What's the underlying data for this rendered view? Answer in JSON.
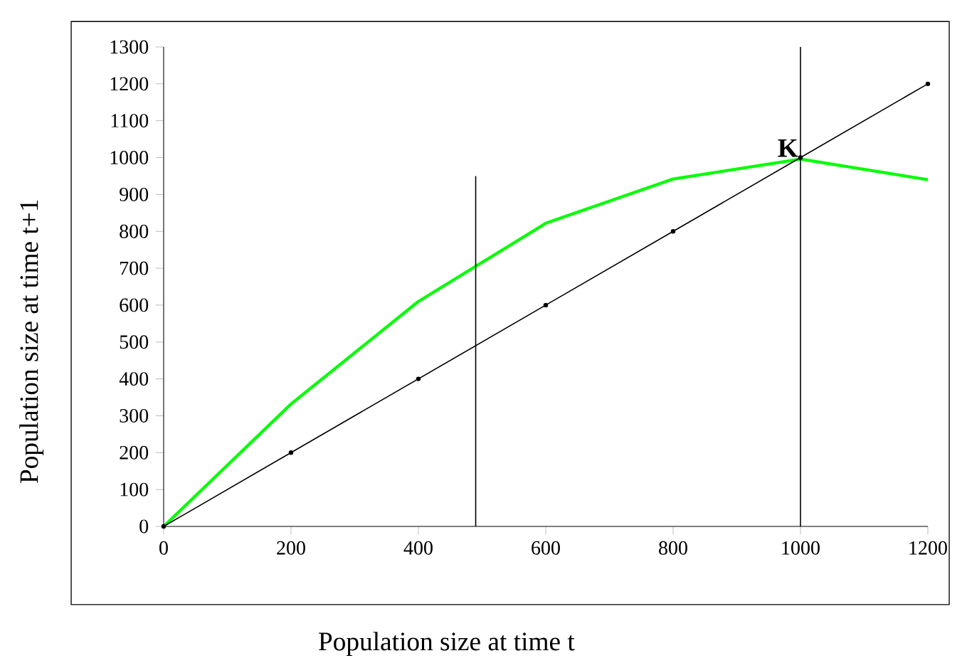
{
  "chart_data": {
    "type": "line",
    "xlabel": "Population size at time t",
    "ylabel": "Population size at time t+1",
    "xlim": [
      0,
      1200
    ],
    "xticks": [
      0,
      200,
      400,
      600,
      800,
      1000,
      1200
    ],
    "ylim": [
      0,
      1300
    ],
    "yticks": [
      0,
      100,
      200,
      300,
      400,
      500,
      600,
      700,
      800,
      900,
      1000,
      1100,
      1200,
      1300
    ],
    "grid": false,
    "series": [
      {
        "color": "#00ff00",
        "x": [
          0,
          200,
          400,
          600,
          800,
          1000,
          1200
        ],
        "values": [
          0,
          332,
          610,
          822,
          942,
          996,
          940
        ],
        "marker": "none"
      },
      {
        "color": "#000000",
        "x": [
          0,
          200,
          400,
          600,
          800,
          1000,
          1200
        ],
        "values": [
          0,
          200,
          400,
          600,
          800,
          1000,
          1200
        ],
        "marker": "circle"
      },
      {
        "color": "#000000",
        "x": [
          490,
          490
        ],
        "values": [
          0,
          950
        ],
        "marker": "none"
      }
    ],
    "ref_lines": [
      {
        "axis": "x",
        "value": 1000,
        "color": "#000000"
      }
    ],
    "annotations": [
      {
        "text": "K",
        "x": 1000,
        "y": 996
      }
    ]
  }
}
